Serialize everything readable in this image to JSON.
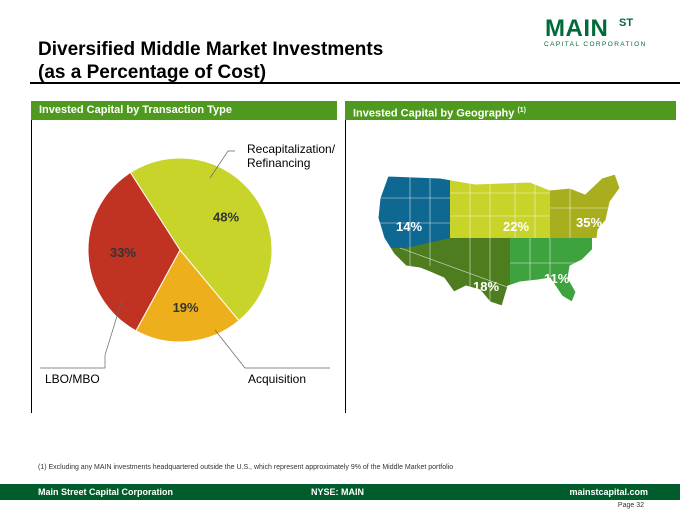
{
  "title_line1": "Diversified Middle Market Investments",
  "title_line2": "(as a Percentage of Cost)",
  "logo": {
    "main": "MAIN",
    "st": "ST",
    "sub": "CAPITAL CORPORATION"
  },
  "left_panel": {
    "heading": "Invested Capital by Transaction Type"
  },
  "right_panel": {
    "heading": "Invested Capital by Geography",
    "heading_note": "(1)"
  },
  "chart_data": {
    "type": "pie",
    "slices": [
      {
        "label": "Recapitalization/ Refinancing",
        "label_line1": "Recapitalization/",
        "label_line2": "Refinancing",
        "value": 48,
        "display": "48%",
        "color": "#c8d42a"
      },
      {
        "label": "Acquisition",
        "value": 19,
        "display": "19%",
        "color": "#eeaf1c"
      },
      {
        "label": "LBO/MBO",
        "value": 33,
        "display": "33%",
        "color": "#c03221"
      }
    ]
  },
  "geography": [
    {
      "region": "West",
      "display": "14%",
      "color": "#0f6891"
    },
    {
      "region": "Midwest",
      "display": "22%",
      "color": "#c8d42a"
    },
    {
      "region": "Northeast",
      "display": "35%",
      "color": "#a9ae1e"
    },
    {
      "region": "Southwest",
      "display": "18%",
      "color": "#4e7d20"
    },
    {
      "region": "Southeast",
      "display": "11%",
      "color": "#3ea33e"
    }
  ],
  "footnote": "(1)    Excluding any MAIN investments headquartered outside the U.S., which represent approximately 9% of the Middle Market portfolio",
  "footer": {
    "left": "Main Street Capital Corporation",
    "center": "NYSE: MAIN",
    "right": "mainstcapital.com"
  },
  "page_label": "Page  32"
}
